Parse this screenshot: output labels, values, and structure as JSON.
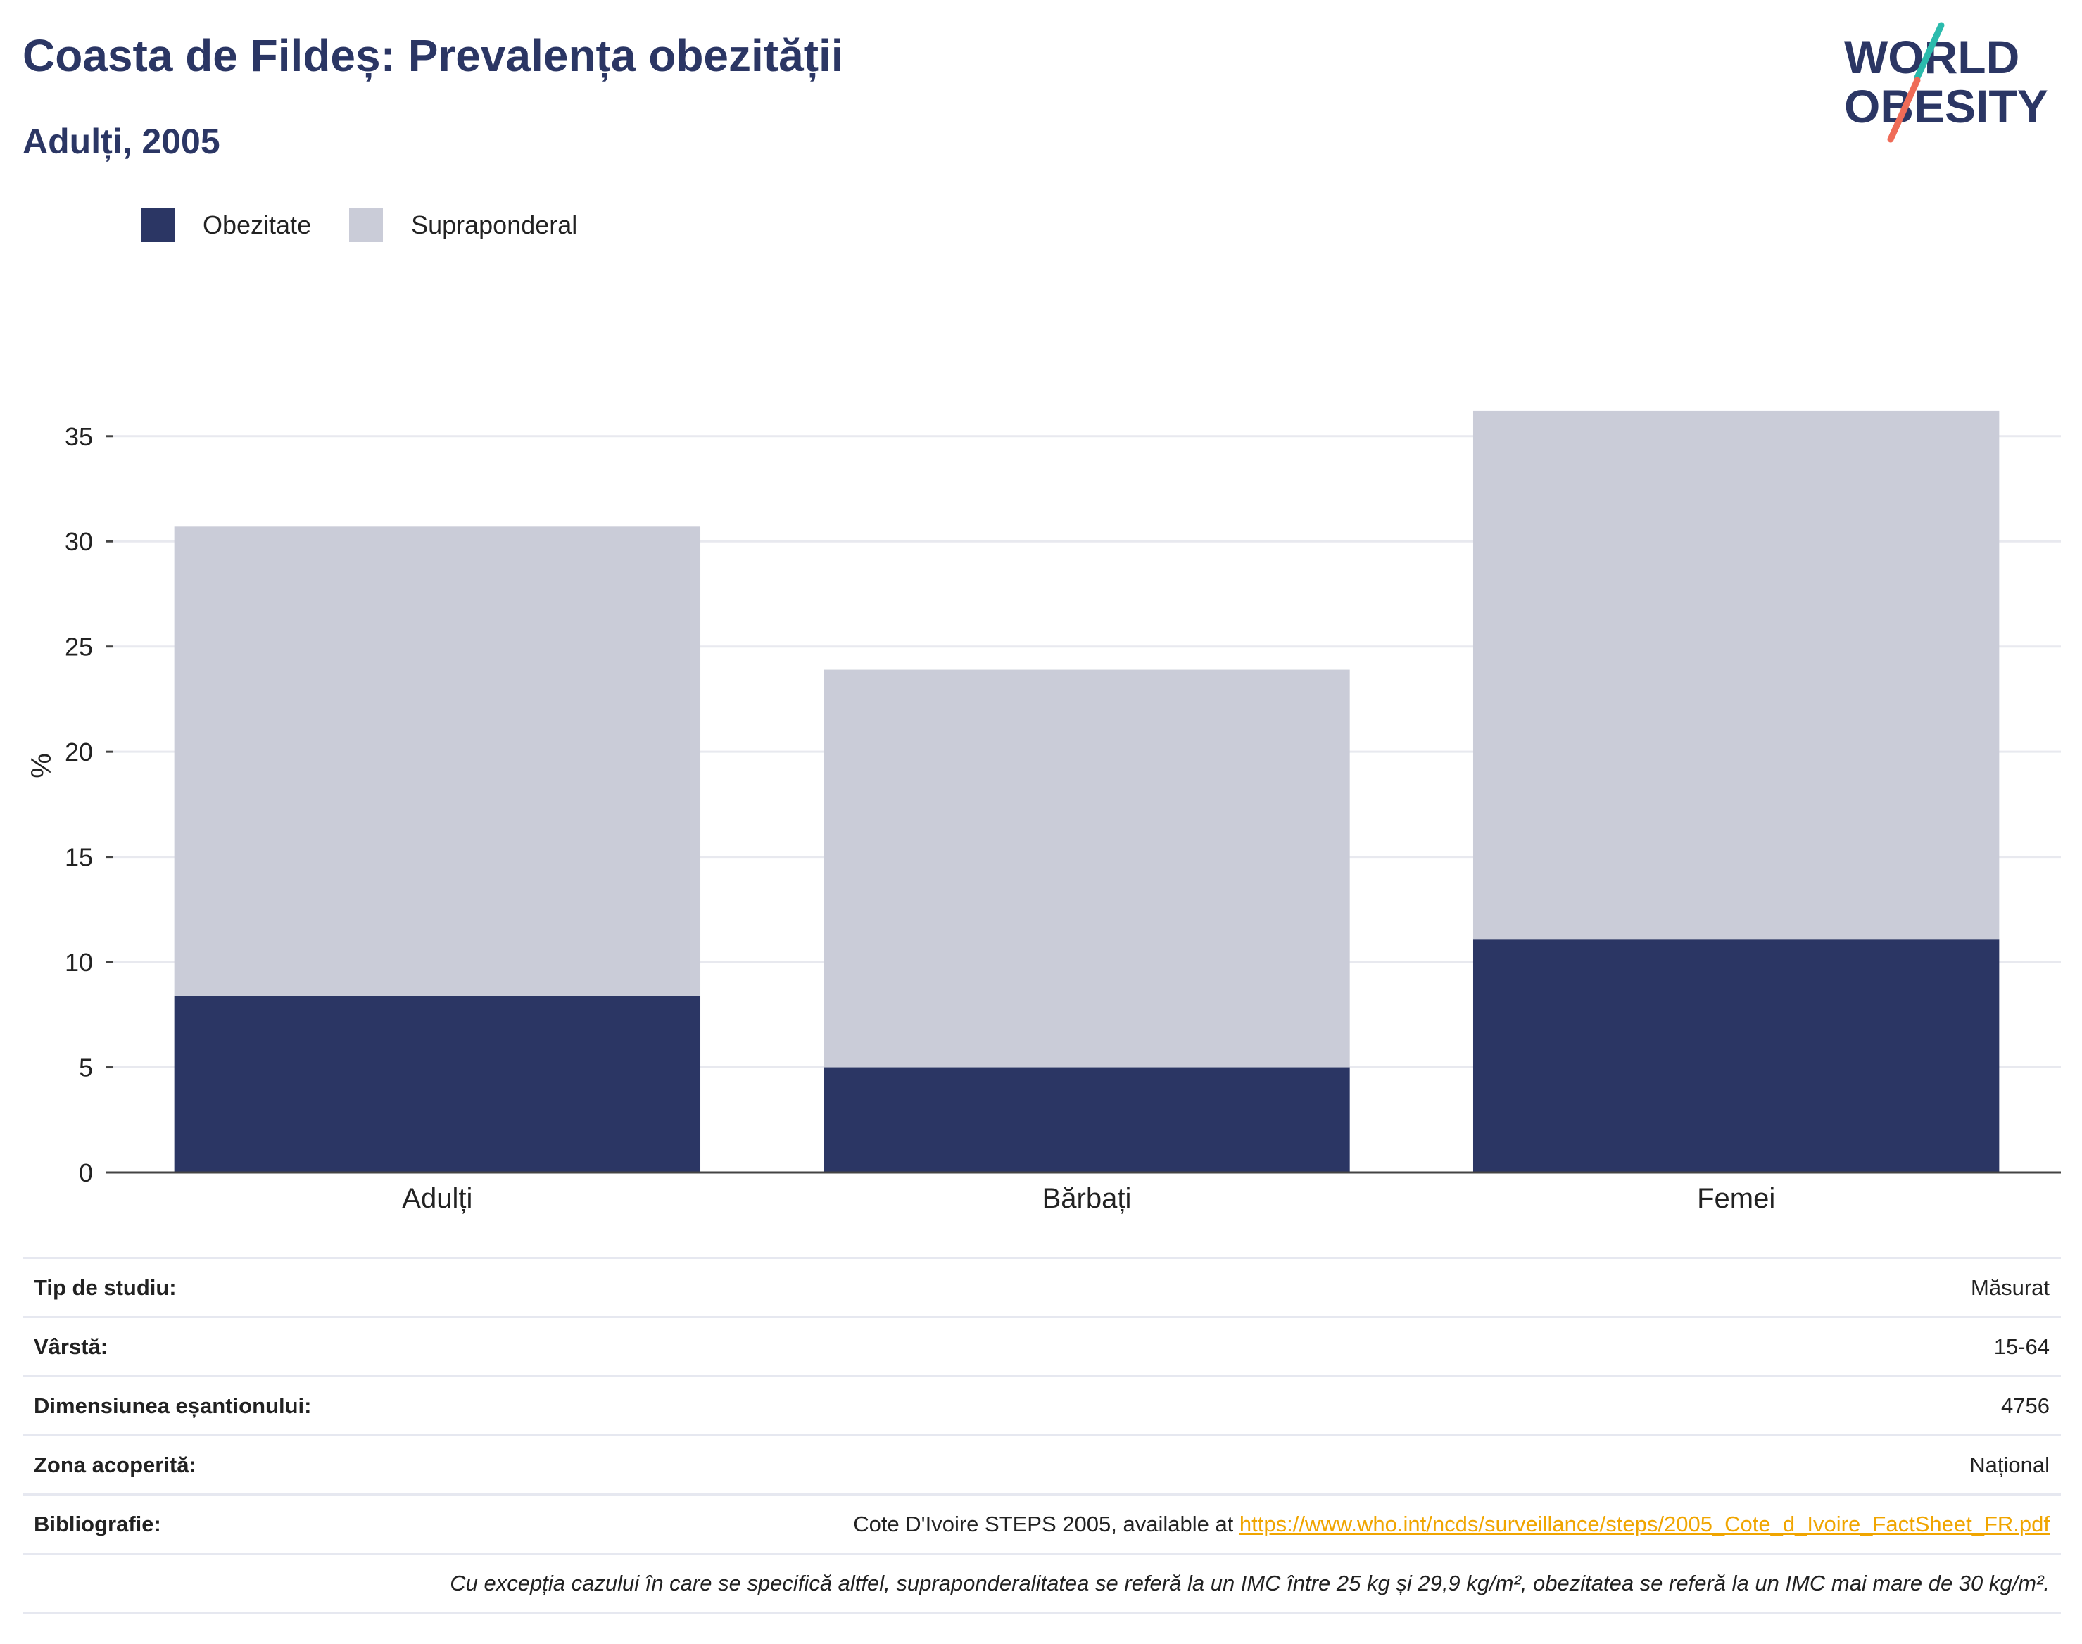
{
  "header": {
    "title": "Coasta de Fildeș: Prevalența obezității",
    "subtitle": "Adulți, 2005"
  },
  "logo": {
    "line1": "WORLD",
    "line2": "OBESITY",
    "accent_teal": "#2bbbad",
    "accent_coral": "#ef6b57"
  },
  "legend": [
    {
      "label": "Obezitate",
      "color": "#2b3664"
    },
    {
      "label": "Supraponderal",
      "color": "#caccd8"
    }
  ],
  "chart_data": {
    "type": "bar",
    "stacked": true,
    "categories": [
      "Adulți",
      "Bărbați",
      "Femei"
    ],
    "series": [
      {
        "name": "Obezitate",
        "color": "#2b3664",
        "values": [
          8.4,
          5.0,
          11.1
        ]
      },
      {
        "name": "Supraponderal",
        "color": "#caccd8",
        "values": [
          22.3,
          18.9,
          25.1
        ]
      }
    ],
    "ylabel": "%",
    "xlabel": "",
    "ylim": [
      0,
      37
    ],
    "yticks": [
      0,
      5,
      10,
      15,
      20,
      25,
      30,
      35
    ],
    "grid": true,
    "legend_position": "top-left"
  },
  "info": {
    "rows": [
      {
        "label": "Tip de studiu:",
        "value": "Măsurat"
      },
      {
        "label": "Vârstă:",
        "value": "15-64"
      },
      {
        "label": "Dimensiunea eșantionului:",
        "value": "4756"
      },
      {
        "label": "Zona acoperită:",
        "value": "Național"
      }
    ],
    "bibliography": {
      "label": "Bibliografie:",
      "text": "Cote D'Ivoire STEPS 2005, available at ",
      "link": "https://www.who.int/ncds/surveillance/steps/2005_Cote_d_Ivoire_FactSheet_FR.pdf"
    },
    "note": "Cu excepția cazului în care se specifică altfel, supraponderalitatea se referă la un IMC între 25 kg și 29,9 kg/m², obezitatea se referă la un IMC mai mare de 30 kg/m²."
  }
}
